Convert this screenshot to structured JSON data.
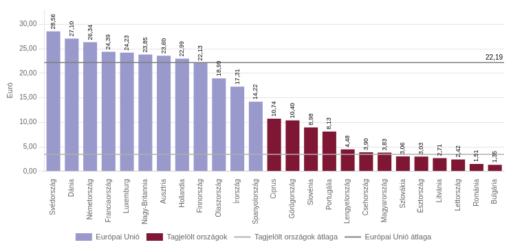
{
  "chart_data": {
    "type": "bar",
    "ylabel": "Euró",
    "categories": [
      "Svédország",
      "Dánia",
      "Németország",
      "Franciaország",
      "Luxemburg",
      "Nagy-Britannia",
      "Ausztria",
      "Hollandia",
      "Finnország",
      "Olaszország",
      "Írország",
      "Spanyolország",
      "Ciprus",
      "Görögország",
      "Slovénia",
      "Portugália",
      "Lengyelország",
      "Csehország",
      "Magyarország",
      "Szlovákia",
      "Észtország",
      "Litvánia",
      "Lettország",
      "Románia",
      "Bulgária"
    ],
    "series": [
      {
        "name": "Európai Unió",
        "color": "#9999cc",
        "values": [
          28.56,
          27.1,
          26.34,
          24.39,
          24.23,
          23.85,
          23.6,
          22.99,
          22.13,
          18.99,
          17.31,
          14.22,
          null,
          null,
          null,
          null,
          null,
          null,
          null,
          null,
          null,
          null,
          null,
          null,
          null
        ],
        "value_labels": [
          "28,56",
          "27,10",
          "26,34",
          "24,39",
          "24,23",
          "23,85",
          "23,60",
          "22,99",
          "22,13",
          "18,99",
          "17,31",
          "14,22",
          null,
          null,
          null,
          null,
          null,
          null,
          null,
          null,
          null,
          null,
          null,
          null,
          null
        ]
      },
      {
        "name": "Tagjelölt országok",
        "color": "#7f1734",
        "values": [
          null,
          null,
          null,
          null,
          null,
          null,
          null,
          null,
          null,
          null,
          null,
          null,
          10.74,
          10.4,
          8.98,
          8.13,
          4.48,
          3.9,
          3.83,
          3.06,
          3.03,
          2.71,
          2.42,
          1.51,
          1.35
        ],
        "value_labels": [
          null,
          null,
          null,
          null,
          null,
          null,
          null,
          null,
          null,
          null,
          null,
          null,
          "10,74",
          "10,40",
          "8,98",
          "8,13",
          "4,48",
          "3,90",
          "3,83",
          "3,06",
          "3,03",
          "2,71",
          "2,42",
          "1,51",
          "1,35"
        ]
      }
    ],
    "reference_lines": [
      {
        "name": "Tagjelölt országok átlaga",
        "value": 3.47,
        "color": "#b0b0b0"
      },
      {
        "name": "Európai Unió átlaga",
        "value": 22.19,
        "color": "#808080",
        "label": "22,19"
      }
    ],
    "ylim": [
      0,
      33
    ],
    "yticks": [
      {
        "value": 0,
        "label": "0,00"
      },
      {
        "value": 5,
        "label": "5,00"
      },
      {
        "value": 10,
        "label": "10,00"
      },
      {
        "value": 15,
        "label": "15,00"
      },
      {
        "value": 20,
        "label": "20,00"
      },
      {
        "value": 25,
        "label": "25,00"
      },
      {
        "value": 30,
        "label": "30,00"
      }
    ],
    "grid": true,
    "legend": "bottom",
    "data_labels": true
  }
}
